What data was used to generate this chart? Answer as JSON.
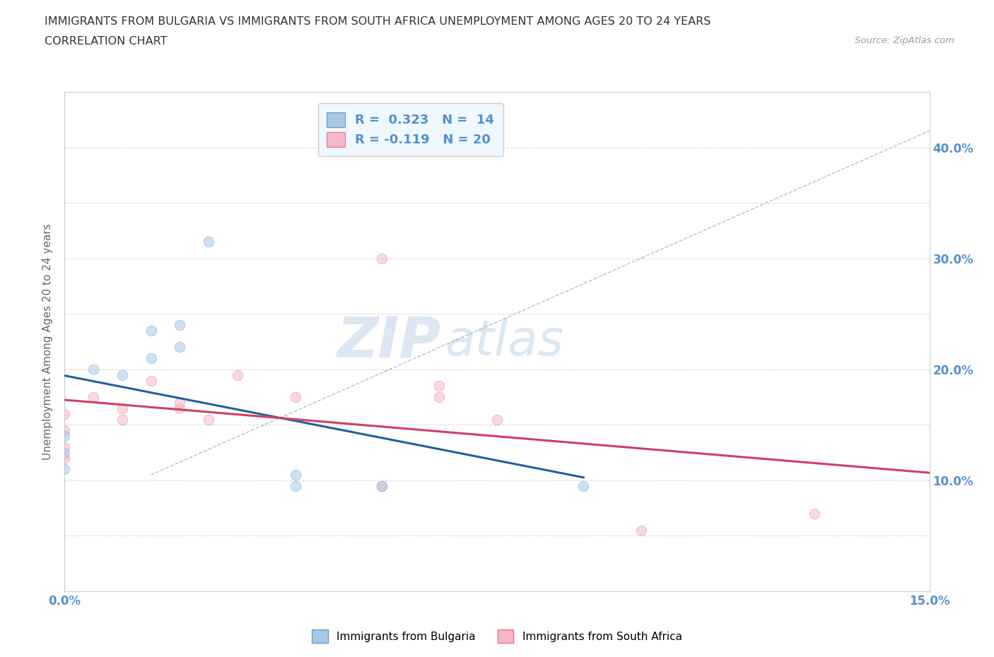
{
  "title_line1": "IMMIGRANTS FROM BULGARIA VS IMMIGRANTS FROM SOUTH AFRICA UNEMPLOYMENT AMONG AGES 20 TO 24 YEARS",
  "title_line2": "CORRELATION CHART",
  "source": "Source: ZipAtlas.com",
  "ylabel": "Unemployment Among Ages 20 to 24 years",
  "xlim": [
    0.0,
    0.15
  ],
  "ylim": [
    0.0,
    0.45
  ],
  "xticklabels_left": "0.0%",
  "xticklabels_right": "15.0%",
  "yticklabels_right": [
    "",
    "",
    "10.0%",
    "",
    "20.0%",
    "",
    "30.0%",
    "",
    "40.0%",
    ""
  ],
  "bulgaria_color": "#a8c8e8",
  "bulgaria_edge": "#6699cc",
  "south_africa_color": "#f5b8c8",
  "south_africa_edge": "#e87090",
  "trendline_bulgaria_color": "#2060a0",
  "trendline_sa_color": "#d04060",
  "trendline_dashed_color": "#b0c0d0",
  "r_bulgaria": 0.323,
  "n_bulgaria": 14,
  "r_sa": -0.119,
  "n_sa": 20,
  "watermark_zip": "ZIP",
  "watermark_atlas": "atlas",
  "bulgaria_x": [
    0.0,
    0.0,
    0.0,
    0.005,
    0.01,
    0.015,
    0.015,
    0.02,
    0.02,
    0.025,
    0.04,
    0.04,
    0.055,
    0.09
  ],
  "bulgaria_y": [
    0.11,
    0.125,
    0.14,
    0.2,
    0.195,
    0.21,
    0.235,
    0.22,
    0.24,
    0.315,
    0.095,
    0.105,
    0.095,
    0.095
  ],
  "south_africa_x": [
    0.0,
    0.0,
    0.0,
    0.0,
    0.005,
    0.01,
    0.01,
    0.015,
    0.02,
    0.02,
    0.025,
    0.03,
    0.04,
    0.055,
    0.055,
    0.065,
    0.065,
    0.075,
    0.1,
    0.13
  ],
  "south_africa_y": [
    0.12,
    0.13,
    0.145,
    0.16,
    0.175,
    0.155,
    0.165,
    0.19,
    0.165,
    0.17,
    0.155,
    0.195,
    0.175,
    0.095,
    0.3,
    0.175,
    0.185,
    0.155,
    0.055,
    0.07
  ],
  "marker_size": 110,
  "alpha": 0.55
}
